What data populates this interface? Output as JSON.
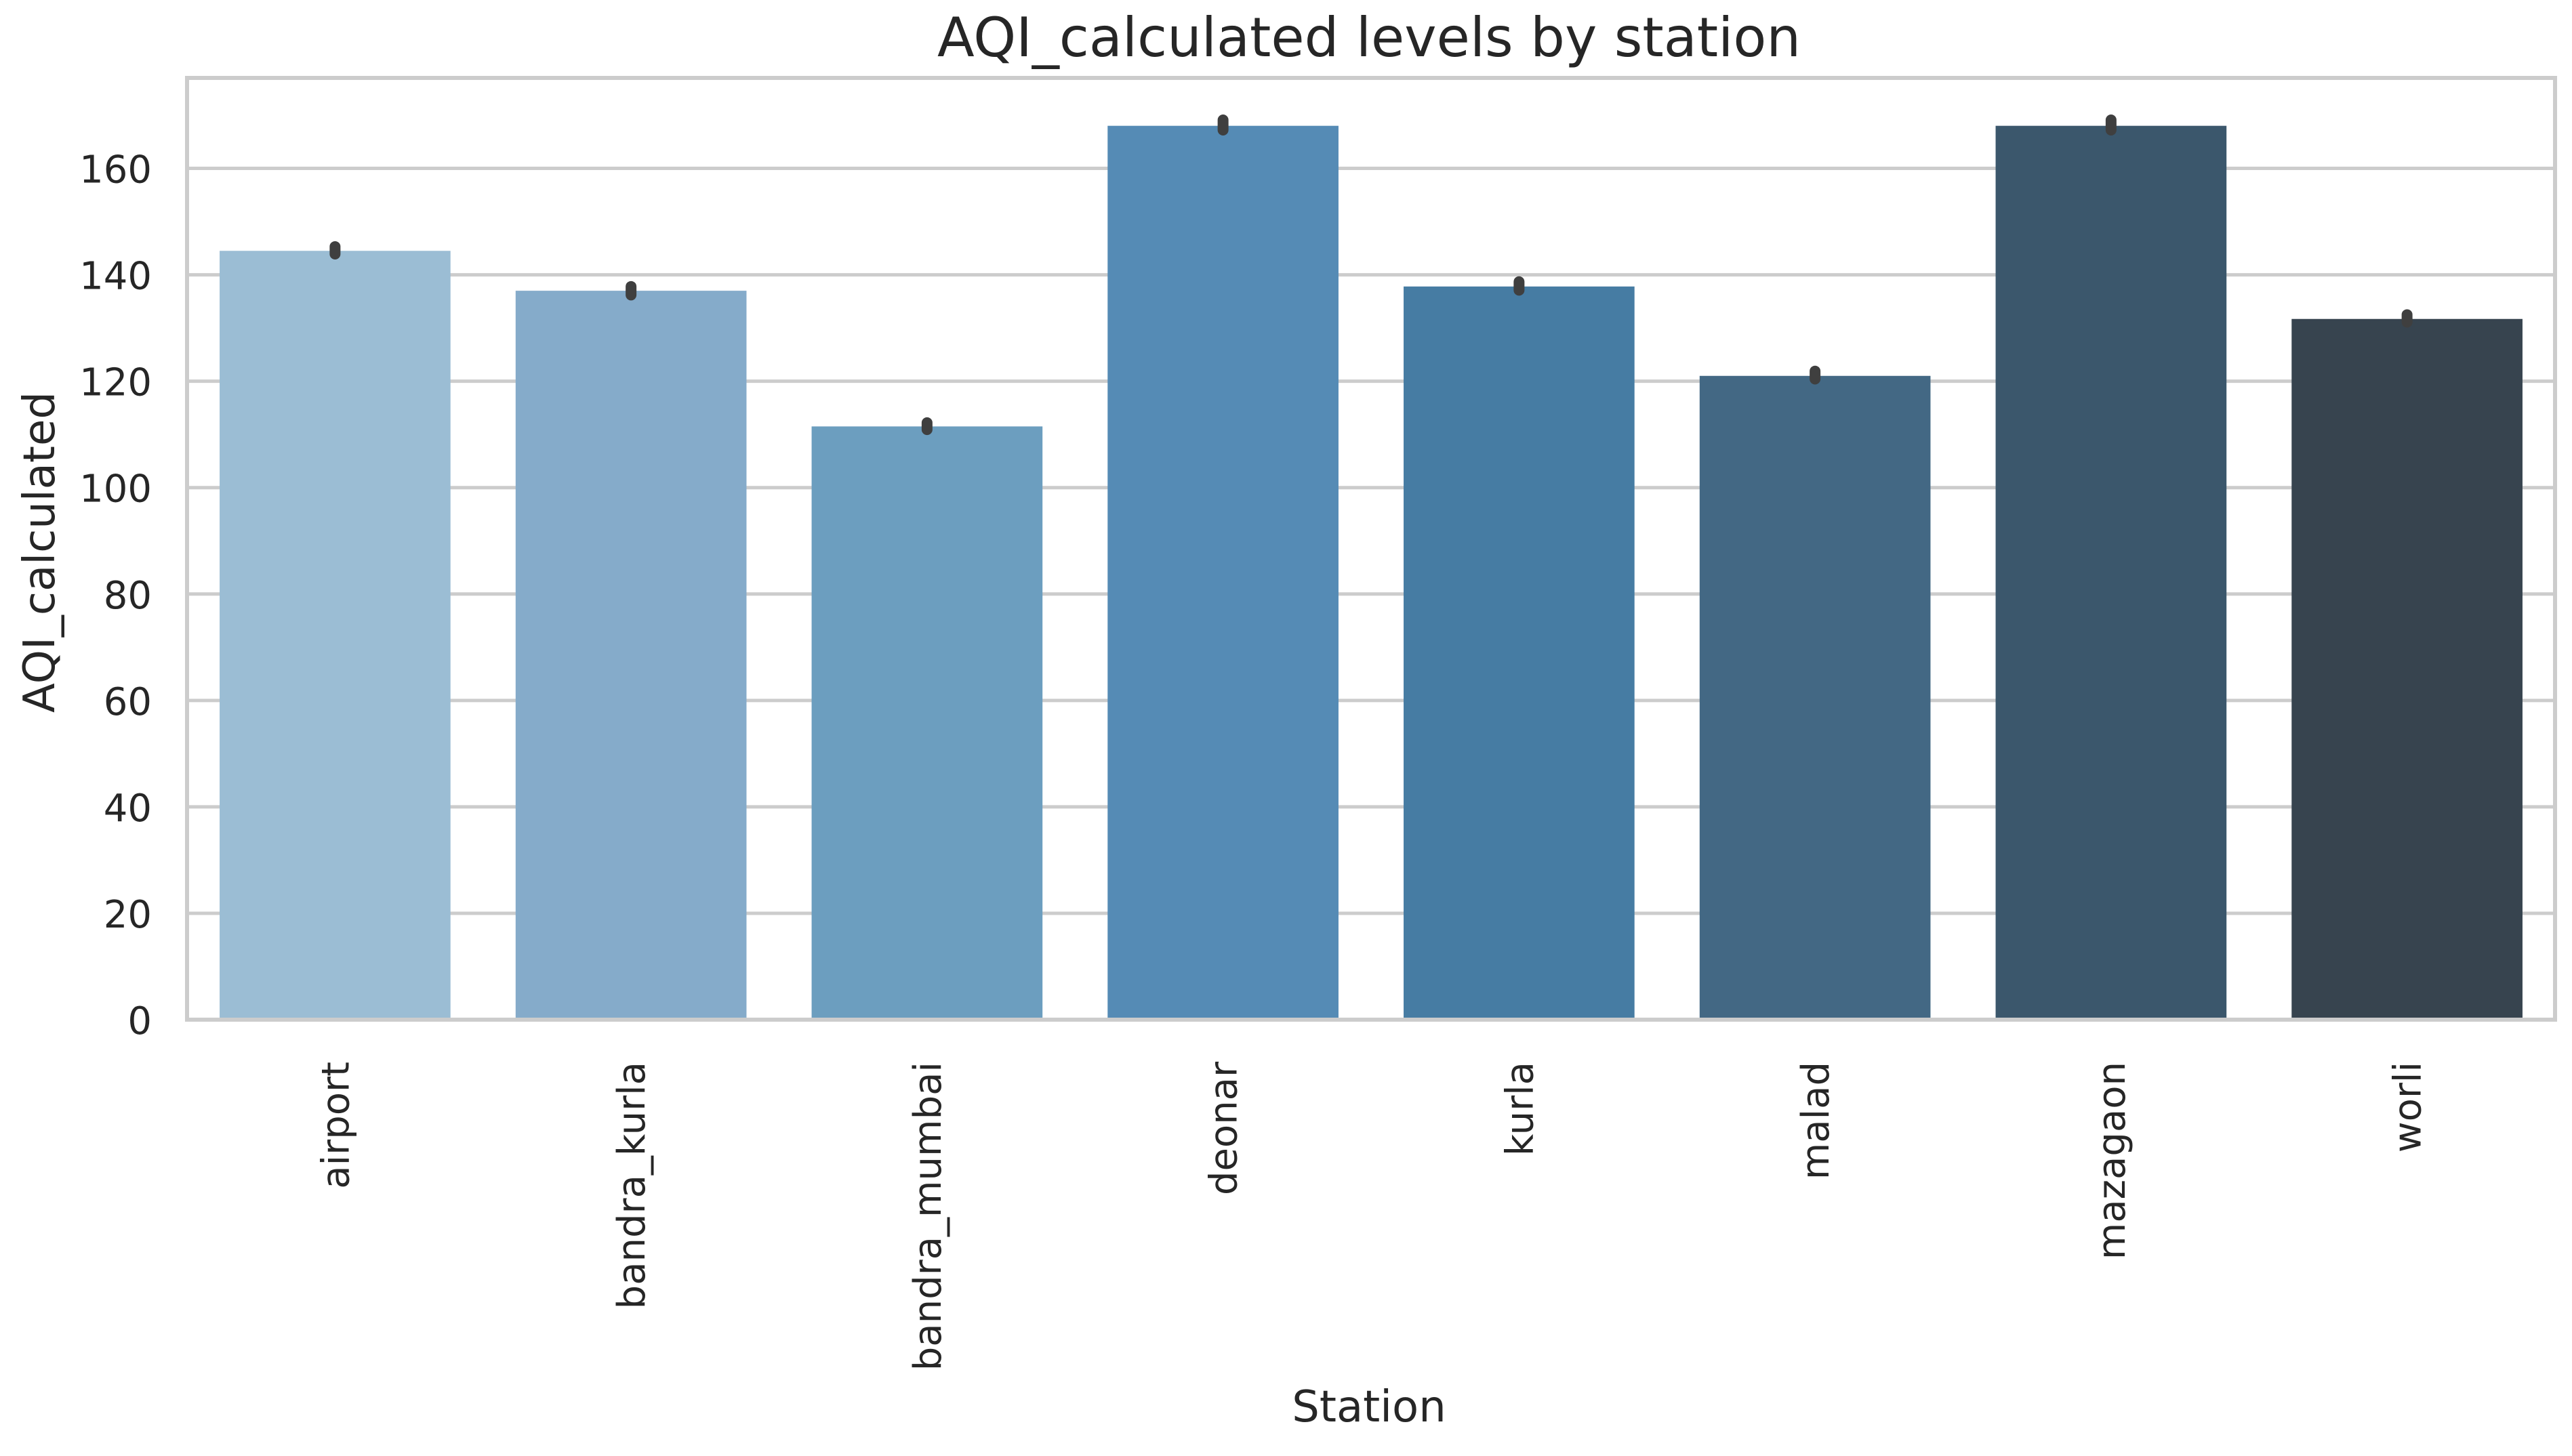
{
  "chart_data": {
    "type": "bar",
    "title": "AQI_calculated levels by station",
    "xlabel": "Station",
    "ylabel": "AQI_calculated",
    "categories": [
      "airport",
      "bandra_kurla",
      "bandra_mumbai",
      "deonar",
      "kurla",
      "malad",
      "mazagaon",
      "worli"
    ],
    "values": [
      144.5,
      137.0,
      111.5,
      168.0,
      137.8,
      121.0,
      168.0,
      131.7
    ],
    "error_bars": [
      [
        143.9,
        145.3
      ],
      [
        136.2,
        137.8
      ],
      [
        110.9,
        112.2
      ],
      [
        167.2,
        169.1
      ],
      [
        137.1,
        138.7
      ],
      [
        120.4,
        121.9
      ],
      [
        167.2,
        169.1
      ],
      [
        131.1,
        132.5
      ]
    ],
    "yticks": [
      0,
      20,
      40,
      60,
      80,
      100,
      120,
      140,
      160
    ],
    "ylim": [
      0,
      177
    ],
    "grid": "horizontal",
    "colors": [
      "#9bbdd4",
      "#85abca",
      "#6c9ebf",
      "#558bb5",
      "#467ca3",
      "#436884",
      "#3b576c",
      "#37444f"
    ],
    "error_bar_color": "#3f3f3f",
    "grid_color": "#cccccc",
    "spine_color": "#cccccc"
  }
}
